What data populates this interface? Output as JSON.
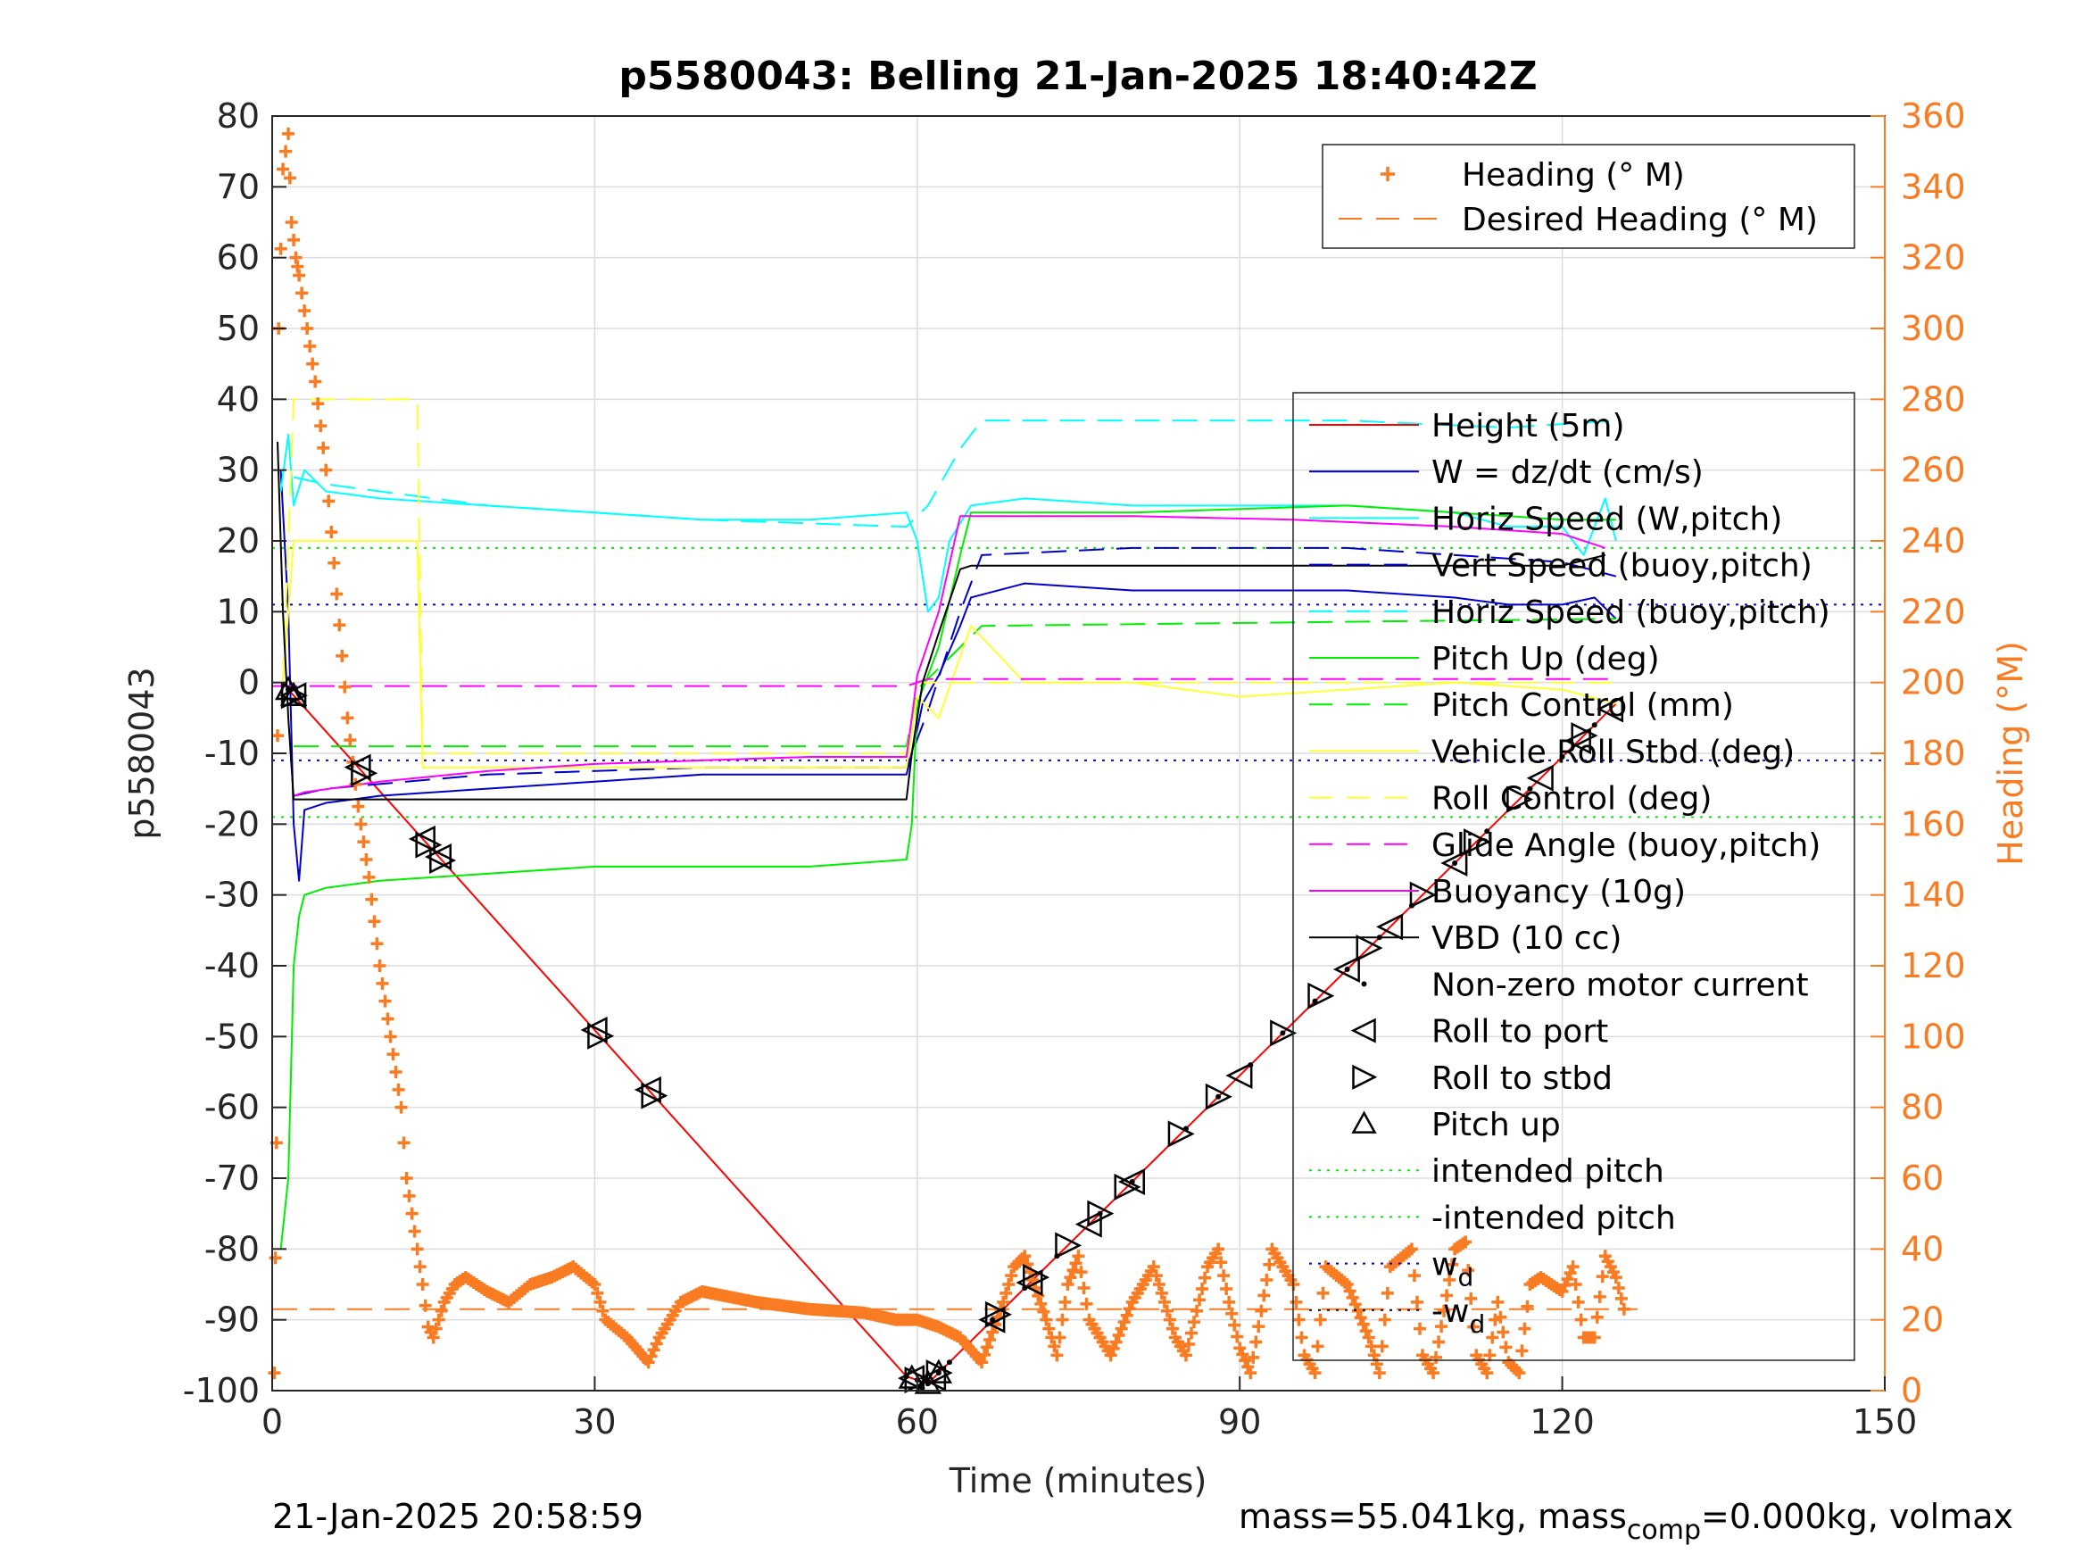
{
  "chart_data": {
    "type": "line",
    "title": "p5580043: Belling 21-Jan-2025 18:40:42Z",
    "xlabel": "Time (minutes)",
    "ylabel_left": "p5580043",
    "ylabel_right": "Heading (°M)",
    "xlim": [
      0,
      150
    ],
    "ylim_left": [
      -100,
      80
    ],
    "ylim_right": [
      0,
      360
    ],
    "xticks": [
      "0",
      "30",
      "60",
      "90",
      "120",
      "150"
    ],
    "yticks_left": [
      "80",
      "70",
      "60",
      "50",
      "40",
      "30",
      "20",
      "10",
      "0",
      "-10",
      "-20",
      "-30",
      "-40",
      "-50",
      "-60",
      "-70",
      "-80",
      "-90",
      "-100"
    ],
    "yticks_right": [
      "360",
      "340",
      "320",
      "300",
      "280",
      "260",
      "240",
      "220",
      "200",
      "180",
      "160",
      "140",
      "120",
      "100",
      "80",
      "60",
      "40",
      "20",
      "0"
    ],
    "grid": true,
    "footer_left": "21-Jan-2025 20:58:59",
    "footer_right": {
      "a": "mass=55.041kg, mass",
      "sub": "comp",
      "b": "=0.000kg, volmax"
    },
    "colors": {
      "heading": "#f97b22",
      "height": "#ff0000",
      "w": "#0000cc",
      "horiz_w": "#00ffff",
      "pitch": "#00ee00",
      "roll": "#ffff33",
      "glide": "#ff00ff",
      "vbd": "#000000"
    },
    "legend_heading": [
      {
        "label": "Heading (° M)",
        "style": "plus",
        "color": "#f97b22"
      },
      {
        "label": "Desired Heading (° M)",
        "style": "dash",
        "color": "#f97b22"
      }
    ],
    "legend_main": [
      {
        "label": "Height (5m)",
        "style": "solid",
        "color": "#ff0000"
      },
      {
        "label": "W = dz/dt (cm/s)",
        "style": "solid",
        "color": "#0000cc"
      },
      {
        "label": "Horiz Speed (W,pitch)",
        "style": "solid",
        "color": "#00ffff"
      },
      {
        "label": "Vert Speed (buoy,pitch)",
        "style": "dash",
        "color": "#0000cc"
      },
      {
        "label": "Horiz Speed (buoy,pitch)",
        "style": "dash",
        "color": "#00ffff"
      },
      {
        "label": "Pitch Up (deg)",
        "style": "solid",
        "color": "#00ee00"
      },
      {
        "label": "Pitch Control (mm)",
        "style": "dash",
        "color": "#00ee00"
      },
      {
        "label": "Vehicle Roll Stbd (deg)",
        "style": "solid",
        "color": "#ffff33"
      },
      {
        "label": "Roll Control (deg)",
        "style": "dash",
        "color": "#ffff33"
      },
      {
        "label": "Glide Angle (buoy,pitch)",
        "style": "dash",
        "color": "#ff00ff"
      },
      {
        "label": "Buoyancy (10g)",
        "style": "solid",
        "color": "#ff00ff"
      },
      {
        "label": "VBD (10 cc)",
        "style": "solid",
        "color": "#000000"
      },
      {
        "label": "Non-zero motor current",
        "style": "dot",
        "color": "#000000"
      },
      {
        "label": "Roll to port",
        "style": "tri-left",
        "color": "#000000"
      },
      {
        "label": "Roll to stbd",
        "style": "tri-right",
        "color": "#000000"
      },
      {
        "label": "Pitch up",
        "style": "tri-up",
        "color": "#000000"
      },
      {
        "label": "intended pitch",
        "style": "dotted",
        "color": "#00ee00"
      },
      {
        "label": "-intended pitch",
        "style": "dotted",
        "color": "#00ee00"
      },
      {
        "label": "w",
        "sub": "d",
        "style": "dotted",
        "color": "#0000cc"
      },
      {
        "label": "-w",
        "sub": "d",
        "style": "dotted",
        "color": "#000000"
      }
    ],
    "series": [
      {
        "name": "Height (5m)",
        "color": "#ff0000",
        "x": [
          1.5,
          59,
          61,
          125
        ],
        "y": [
          -1,
          -98,
          -99,
          -3
        ]
      },
      {
        "name": "W = dz/dt (cm/s)",
        "color": "#0000cc",
        "x": [
          0.8,
          1.5,
          2,
          2.5,
          3,
          5,
          10,
          20,
          30,
          40,
          50,
          59,
          59.8,
          60.5,
          62,
          64,
          65,
          70,
          80,
          90,
          100,
          110,
          115,
          120,
          123,
          125
        ],
        "y": [
          30,
          10,
          -20,
          -28,
          -18,
          -17,
          -16,
          -15,
          -14,
          -13,
          -13,
          -13,
          -8,
          -3,
          1,
          8,
          12,
          14,
          13,
          13,
          13,
          12,
          11,
          11,
          12,
          9
        ]
      },
      {
        "name": "Vert Speed (buoy,pitch)",
        "color": "#0000cc",
        "x": [
          2,
          5,
          20,
          40,
          59,
          61,
          64,
          66,
          80,
          100,
          110,
          120,
          125
        ],
        "y": [
          -16,
          -15,
          -13,
          -12,
          -12,
          -4,
          10,
          18,
          19,
          19,
          18,
          17,
          15
        ]
      },
      {
        "name": "Horiz Speed (W,pitch)",
        "color": "#00ffff",
        "x": [
          0.8,
          1.5,
          2,
          3,
          5,
          10,
          20,
          30,
          40,
          50,
          59,
          60,
          61,
          62,
          63,
          65,
          70,
          80,
          90,
          100,
          110,
          115,
          120,
          122,
          124,
          125
        ],
        "y": [
          27,
          35,
          25,
          30,
          27,
          26,
          25,
          24,
          23,
          23,
          24,
          20,
          10,
          12,
          20,
          25,
          26,
          25,
          25,
          25,
          24,
          22,
          22,
          18,
          26,
          20
        ]
      },
      {
        "name": "Horiz Speed (buoy,pitch)",
        "color": "#00ffff",
        "x": [
          2,
          5,
          20,
          40,
          59,
          61,
          64,
          66,
          80,
          100,
          115,
          125
        ],
        "y": [
          29,
          28,
          25,
          23,
          22,
          25,
          33,
          37,
          37,
          37,
          36,
          37
        ]
      },
      {
        "name": "Pitch Up (deg)",
        "color": "#00ee00",
        "x": [
          0.8,
          1.5,
          2,
          2.5,
          3,
          5,
          10,
          20,
          30,
          40,
          50,
          59,
          59.5,
          60,
          62,
          64,
          65,
          80,
          100,
          110,
          120,
          125
        ],
        "y": [
          -80,
          -70,
          -40,
          -33,
          -30,
          -29,
          -28,
          -27,
          -26,
          -26,
          -26,
          -25,
          -20,
          -3,
          5,
          18,
          24,
          24,
          25,
          24,
          23,
          23
        ]
      },
      {
        "name": "Pitch Control (mm)",
        "color": "#00ee00",
        "x": [
          2,
          59,
          60,
          66,
          125
        ],
        "y": [
          -9,
          -9,
          -1,
          8,
          9
        ]
      },
      {
        "name": "Vehicle Roll Stbd (deg)",
        "color": "#ffff33",
        "x": [
          1,
          2,
          5,
          10,
          13.5,
          14,
          30,
          50,
          59,
          60,
          62,
          65,
          70,
          80,
          90,
          100,
          110,
          120,
          125
        ],
        "y": [
          0,
          20,
          20,
          20,
          20,
          -12,
          -12,
          -12,
          -12,
          -2,
          -5,
          8,
          0,
          0,
          -2,
          -1,
          0,
          -1,
          -3
        ]
      },
      {
        "name": "Roll Control (deg)",
        "color": "#ffff33",
        "x": [
          1,
          2,
          13.5,
          14,
          59,
          60,
          125
        ],
        "y": [
          0,
          40,
          40,
          -10,
          -10,
          0,
          0
        ]
      },
      {
        "name": "Glide Angle (buoy,pitch)",
        "color": "#ff00ff",
        "x": [
          0,
          59,
          61,
          125
        ],
        "y": [
          -0.5,
          -0.5,
          0.5,
          0.5
        ]
      },
      {
        "name": "Buoyancy (10g)",
        "color": "#ff00ff",
        "x": [
          2,
          3,
          10,
          20,
          30,
          40,
          50,
          59,
          59.5,
          60,
          62,
          64,
          80,
          95,
          110,
          120,
          124
        ],
        "y": [
          -16,
          -15.5,
          -14,
          -12.5,
          -11.5,
          -11,
          -10.5,
          -10.5,
          -5,
          1,
          10,
          23.5,
          23.5,
          23,
          22,
          21,
          19
        ]
      },
      {
        "name": "VBD (10 cc)",
        "color": "#000000",
        "x": [
          0.5,
          1,
          1.5,
          2,
          59,
          59.5,
          60.5,
          62,
          64,
          65,
          110,
          120,
          124
        ],
        "y": [
          34,
          10,
          -5,
          -16.5,
          -16.5,
          -10,
          0,
          7,
          16,
          16.5,
          16.5,
          16.5,
          18
        ]
      },
      {
        "name": "Heading (° M)",
        "color": "#f97b22",
        "axis": "right",
        "x": [
          0.2,
          0.4,
          0.6,
          1.0,
          1.5,
          1.8,
          2.2,
          2.5,
          3,
          4,
          5,
          6,
          7,
          8,
          9,
          10,
          11,
          12,
          12.5,
          13,
          14,
          14.5,
          15,
          16,
          17,
          18,
          20,
          22,
          24,
          26,
          28,
          30,
          31,
          33,
          35,
          36,
          38,
          40,
          45,
          50,
          55,
          58,
          60,
          62,
          64,
          66,
          68,
          69,
          70,
          72,
          73,
          74,
          75,
          76,
          78,
          80,
          81,
          82,
          84,
          85,
          87,
          88,
          89,
          90,
          91,
          93,
          94,
          95,
          96,
          97,
          98,
          100,
          102,
          103,
          104,
          106,
          107,
          108,
          110,
          111,
          112,
          113,
          114,
          115,
          116,
          117,
          118,
          120,
          121,
          122,
          123,
          124,
          125,
          126
        ],
        "y": [
          5,
          70,
          300,
          345,
          355,
          330,
          320,
          315,
          305,
          285,
          260,
          225,
          190,
          165,
          145,
          120,
          100,
          80,
          60,
          50,
          30,
          18,
          15,
          25,
          30,
          32,
          28,
          25,
          30,
          32,
          35,
          30,
          20,
          15,
          8,
          15,
          25,
          28,
          25,
          23,
          22,
          20,
          20,
          18,
          15,
          8,
          25,
          35,
          38,
          20,
          10,
          30,
          38,
          20,
          10,
          25,
          30,
          35,
          15,
          10,
          35,
          40,
          25,
          12,
          5,
          40,
          35,
          30,
          10,
          5,
          35,
          30,
          15,
          5,
          35,
          40,
          10,
          5,
          40,
          42,
          10,
          5,
          25,
          8,
          5,
          30,
          32,
          28,
          35,
          15,
          15,
          38,
          32,
          20
        ]
      },
      {
        "name": "Desired Heading (° M)",
        "color": "#f97b22",
        "axis": "right",
        "x": [
          0,
          127
        ],
        "y": [
          23,
          23
        ]
      }
    ],
    "reference_lines": [
      {
        "name": "intended pitch",
        "y": 19,
        "color": "#00ee00"
      },
      {
        "name": "-intended pitch",
        "y": -19,
        "color": "#00ee00"
      },
      {
        "name": "w_d",
        "y": 11,
        "color": "#0000ff"
      },
      {
        "name": "-w_d",
        "y": -11,
        "color": "#0000ff"
      }
    ],
    "markers": {
      "roll_to_port_x": [
        2,
        8,
        14,
        15.5,
        30,
        35,
        59.5,
        61.5,
        67,
        70.5,
        76,
        80,
        90,
        100,
        104,
        110,
        118,
        121.5,
        124.5
      ],
      "roll_to_stbd_x": [
        2,
        8.5,
        14.5,
        15.8,
        30.5,
        35.5,
        60,
        62,
        67.5,
        71,
        74,
        77,
        79.5,
        84.5,
        88,
        94,
        97.5,
        102,
        107,
        112,
        116,
        122
      ],
      "pitch_up_x": [
        1.5,
        2,
        59.5,
        61,
        62
      ],
      "motor_current_x": [
        1.5,
        59,
        60,
        61,
        62,
        63,
        67,
        70,
        73,
        77,
        80,
        85,
        88,
        91,
        94,
        97,
        100,
        103,
        106,
        110,
        113,
        117,
        120,
        123
      ]
    }
  }
}
